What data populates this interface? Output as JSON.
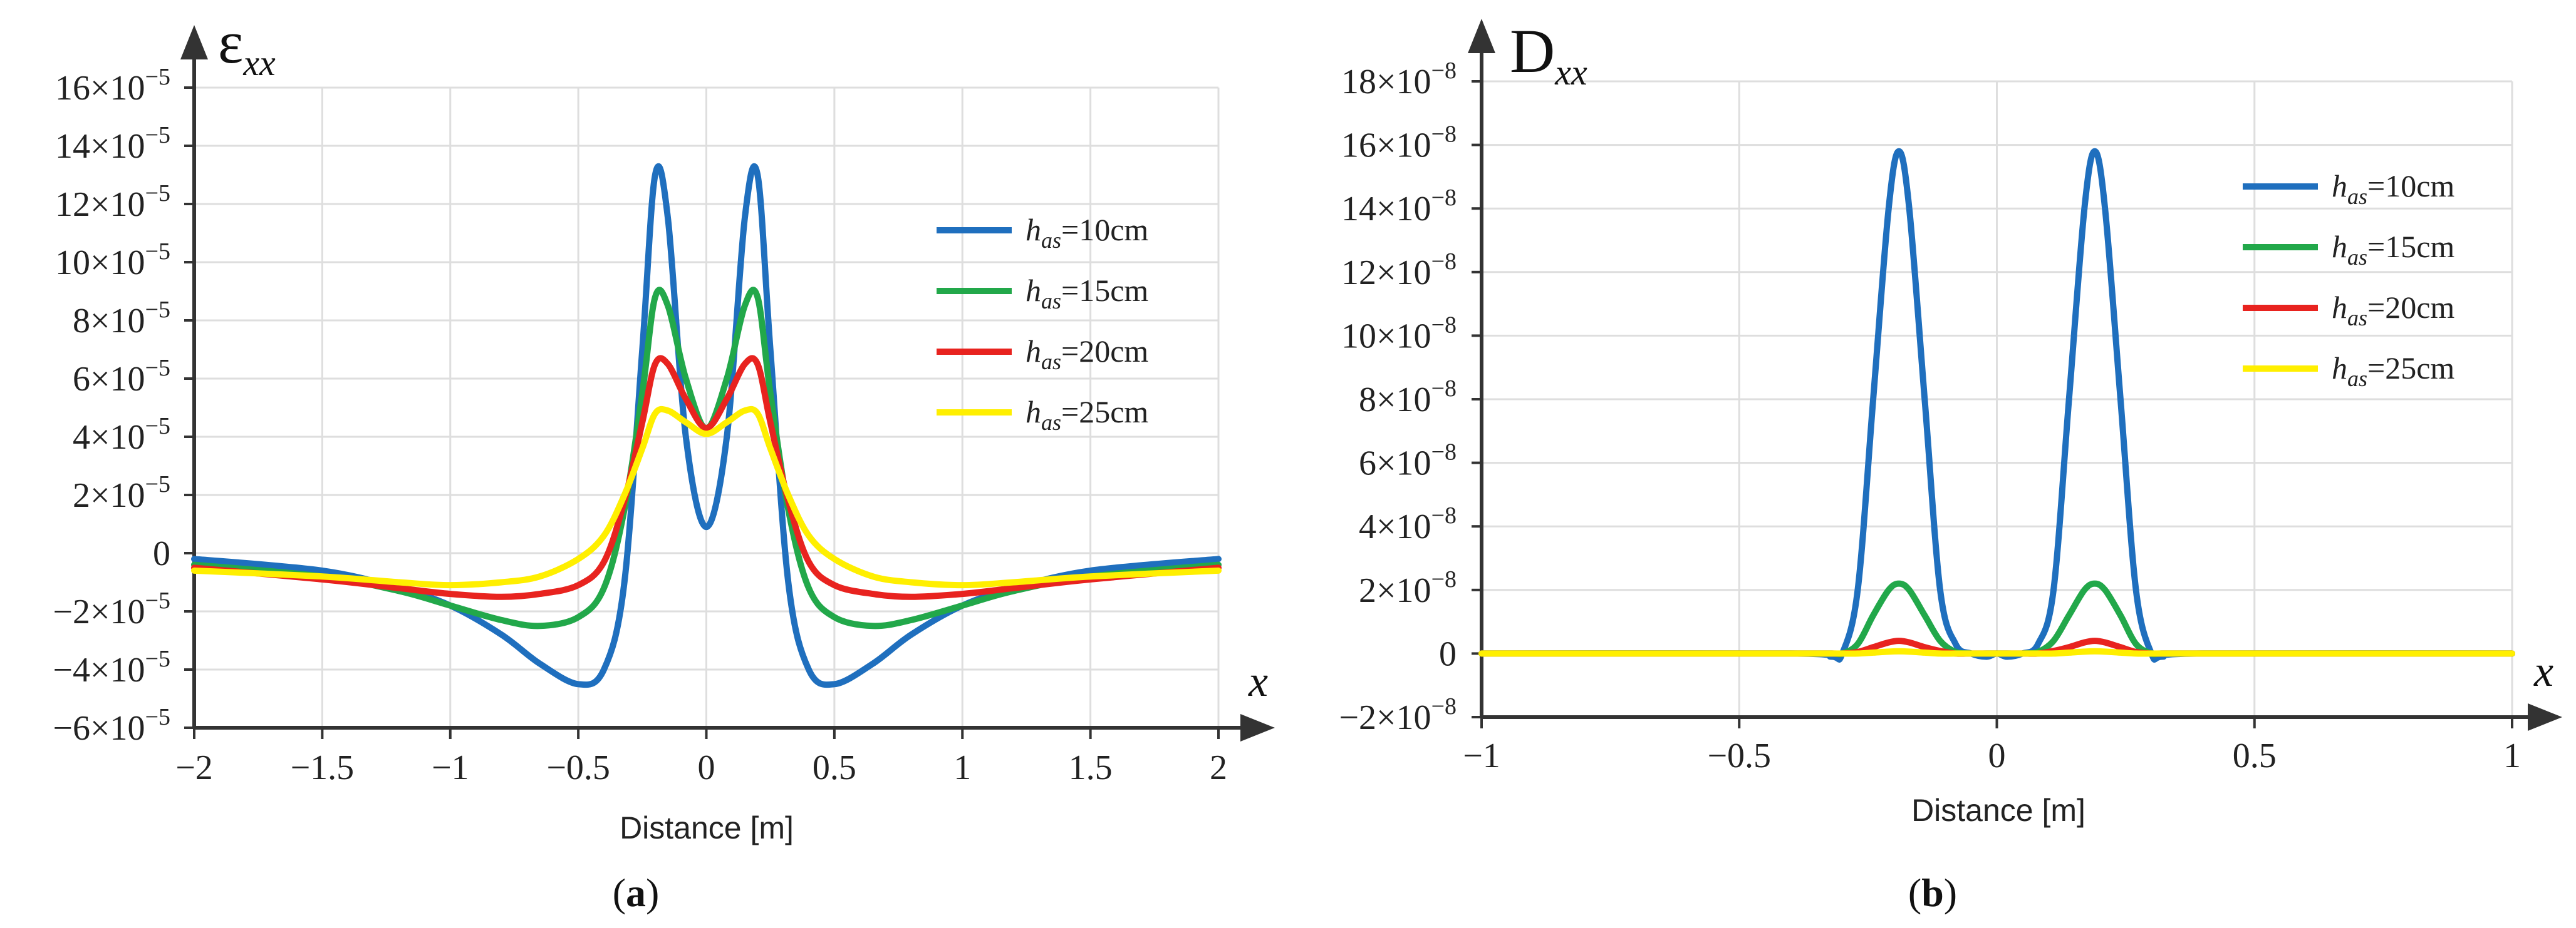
{
  "chart_data": [
    {
      "id": "a",
      "type": "line",
      "caption_letter": "a",
      "ylabel_symbol": "ε",
      "ylabel_sub": "xx",
      "x_axis_symbol": "x",
      "xlabel": "Distance [m]",
      "xlim": [
        -2,
        2
      ],
      "ylim": [
        -6e-05,
        0.00016
      ],
      "grid": true,
      "legend_position": "center-right",
      "x_ticks": [
        {
          "value": -2,
          "label": "−2"
        },
        {
          "value": -1.5,
          "label": "−1.5"
        },
        {
          "value": -1,
          "label": "−1"
        },
        {
          "value": -0.5,
          "label": "−0.5"
        },
        {
          "value": 0,
          "label": "0"
        },
        {
          "value": 0.5,
          "label": "0.5"
        },
        {
          "value": 1,
          "label": "1"
        },
        {
          "value": 1.5,
          "label": "1.5"
        },
        {
          "value": 2,
          "label": "2"
        }
      ],
      "y_ticks": [
        {
          "value": -6e-05,
          "mant": "−6",
          "base": "×10",
          "exp": "−5"
        },
        {
          "value": -4e-05,
          "mant": "−4",
          "base": "×10",
          "exp": "−5"
        },
        {
          "value": -2e-05,
          "mant": "−2",
          "base": "×10",
          "exp": "−5"
        },
        {
          "value": 0,
          "mant": "0",
          "base": "",
          "exp": ""
        },
        {
          "value": 2e-05,
          "mant": "2",
          "base": "×10",
          "exp": "−5"
        },
        {
          "value": 4e-05,
          "mant": "4",
          "base": "×10",
          "exp": "−5"
        },
        {
          "value": 6e-05,
          "mant": "6",
          "base": "×10",
          "exp": "−5"
        },
        {
          "value": 8e-05,
          "mant": "8",
          "base": "×10",
          "exp": "−5"
        },
        {
          "value": 0.0001,
          "mant": "10",
          "base": "×10",
          "exp": "−5"
        },
        {
          "value": 0.00012,
          "mant": "12",
          "base": "×10",
          "exp": "−5"
        },
        {
          "value": 0.00014,
          "mant": "14",
          "base": "×10",
          "exp": "−5"
        },
        {
          "value": 0.00016,
          "mant": "16",
          "base": "×10",
          "exp": "−5"
        }
      ],
      "x": [
        -2.0,
        -1.5,
        -1.2,
        -1.0,
        -0.8,
        -0.65,
        -0.5,
        -0.4,
        -0.32,
        -0.25,
        -0.2,
        -0.15,
        -0.08,
        0.0,
        0.08,
        0.15,
        0.2,
        0.25,
        0.32,
        0.4,
        0.5,
        0.65,
        0.8,
        1.0,
        1.2,
        1.5,
        2.0
      ],
      "series": [
        {
          "name_main": "h",
          "name_sub": "as",
          "name_rest": "=10cm",
          "color": "#1f6fbe",
          "values": [
            -2e-06,
            -6e-06,
            -1.2e-05,
            -1.8e-05,
            -2.8e-05,
            -3.8e-05,
            -4.5e-05,
            -4e-05,
            -1e-05,
            7e-05,
            0.00013,
            0.000115,
            4e-05,
            9e-06,
            4e-05,
            0.000115,
            0.00013,
            7e-05,
            -1e-05,
            -4e-05,
            -4.5e-05,
            -3.8e-05,
            -2.8e-05,
            -1.8e-05,
            -1.2e-05,
            -6e-06,
            -2e-06
          ]
        },
        {
          "name_main": "h",
          "name_sub": "as",
          "name_rest": "=15cm",
          "color": "#22a84a",
          "values": [
            -4e-06,
            -8e-06,
            -1.3e-05,
            -1.8e-05,
            -2.3e-05,
            -2.5e-05,
            -2.2e-05,
            -1.2e-05,
            1.5e-05,
            5.5e-05,
            8.8e-05,
            8.5e-05,
            6e-05,
            4.3e-05,
            6e-05,
            8.5e-05,
            8.8e-05,
            5.5e-05,
            1.5e-05,
            -1.2e-05,
            -2.2e-05,
            -2.5e-05,
            -2.3e-05,
            -1.8e-05,
            -1.3e-05,
            -8e-06,
            -4e-06
          ]
        },
        {
          "name_main": "h",
          "name_sub": "as",
          "name_rest": "=20cm",
          "color": "#e8231f",
          "values": [
            -5e-06,
            -9e-06,
            -1.2e-05,
            -1.4e-05,
            -1.5e-05,
            -1.4e-05,
            -1.1e-05,
            -3e-06,
            1.8e-05,
            4.5e-05,
            6.5e-05,
            6.5e-05,
            5.3e-05,
            4.3e-05,
            5.3e-05,
            6.5e-05,
            6.5e-05,
            4.5e-05,
            1.8e-05,
            -3e-06,
            -1.1e-05,
            -1.4e-05,
            -1.5e-05,
            -1.4e-05,
            -1.2e-05,
            -9e-06,
            -5e-06
          ]
        },
        {
          "name_main": "h",
          "name_sub": "as",
          "name_rest": "=25cm",
          "color": "#ffef00",
          "values": [
            -6e-06,
            -8e-06,
            -1e-05,
            -1.1e-05,
            -1e-05,
            -8e-06,
            -2e-06,
            6e-06,
            2e-05,
            3.6e-05,
            4.8e-05,
            4.9e-05,
            4.5e-05,
            4.1e-05,
            4.5e-05,
            4.9e-05,
            4.8e-05,
            3.6e-05,
            2e-05,
            6e-06,
            -2e-06,
            -8e-06,
            -1e-05,
            -1.1e-05,
            -1e-05,
            -8e-06,
            -6e-06
          ]
        }
      ]
    },
    {
      "id": "b",
      "type": "line",
      "caption_letter": "b",
      "ylabel_symbol": "D",
      "ylabel_sub": "xx",
      "x_axis_symbol": "x",
      "xlabel": "Distance [m]",
      "xlim": [
        -1,
        1
      ],
      "ylim": [
        -2e-08,
        1.8e-07
      ],
      "grid": true,
      "legend_position": "top-right",
      "x_ticks": [
        {
          "value": -1,
          "label": "−1"
        },
        {
          "value": -0.5,
          "label": "−0.5"
        },
        {
          "value": 0,
          "label": "0"
        },
        {
          "value": 0.5,
          "label": "0.5"
        },
        {
          "value": 1,
          "label": "1"
        }
      ],
      "y_ticks": [
        {
          "value": -2e-08,
          "mant": "−2",
          "base": "×10",
          "exp": "−8"
        },
        {
          "value": 0,
          "mant": "0",
          "base": "",
          "exp": ""
        },
        {
          "value": 2e-08,
          "mant": "2",
          "base": "×10",
          "exp": "−8"
        },
        {
          "value": 4e-08,
          "mant": "4",
          "base": "×10",
          "exp": "−8"
        },
        {
          "value": 6e-08,
          "mant": "6",
          "base": "×10",
          "exp": "−8"
        },
        {
          "value": 8e-08,
          "mant": "8",
          "base": "×10",
          "exp": "−8"
        },
        {
          "value": 1e-07,
          "mant": "10",
          "base": "×10",
          "exp": "−8"
        },
        {
          "value": 1.2e-07,
          "mant": "12",
          "base": "×10",
          "exp": "−8"
        },
        {
          "value": 1.4e-07,
          "mant": "14",
          "base": "×10",
          "exp": "−8"
        },
        {
          "value": 1.6e-07,
          "mant": "16",
          "base": "×10",
          "exp": "−8"
        },
        {
          "value": 1.8e-07,
          "mant": "18",
          "base": "×10",
          "exp": "−8"
        }
      ],
      "x": [
        -1.0,
        -0.4,
        -0.32,
        -0.3,
        -0.27,
        -0.24,
        -0.21,
        -0.19,
        -0.17,
        -0.14,
        -0.11,
        -0.08,
        -0.05,
        -0.02,
        0.0,
        0.02,
        0.05,
        0.08,
        0.11,
        0.14,
        0.17,
        0.19,
        0.21,
        0.24,
        0.27,
        0.3,
        0.32,
        0.4,
        1.0
      ],
      "series": [
        {
          "name_main": "h",
          "name_sub": "as",
          "name_rest": "=10cm",
          "color": "#1f6fbe",
          "values": [
            0,
            0,
            -1e-09,
            0,
            2e-08,
            8e-08,
            1.4e-07,
            1.58e-07,
            1.4e-07,
            8e-08,
            2e-08,
            3e-09,
            0,
            -1e-09,
            0,
            -1e-09,
            0,
            3e-09,
            2e-08,
            8e-08,
            1.4e-07,
            1.58e-07,
            1.4e-07,
            8e-08,
            2e-08,
            0,
            -1e-09,
            0,
            0
          ]
        },
        {
          "name_main": "h",
          "name_sub": "as",
          "name_rest": "=15cm",
          "color": "#22a84a",
          "values": [
            0,
            0,
            0,
            0,
            3e-09,
            1.2e-08,
            2e-08,
            2.2e-08,
            2e-08,
            1.2e-08,
            4e-09,
            5e-10,
            0,
            0,
            0,
            0,
            0,
            5e-10,
            4e-09,
            1.2e-08,
            2e-08,
            2.2e-08,
            2e-08,
            1.2e-08,
            3e-09,
            0,
            0,
            0,
            0
          ]
        },
        {
          "name_main": "h",
          "name_sub": "as",
          "name_rest": "=20cm",
          "color": "#e8231f",
          "values": [
            0,
            0,
            0,
            0,
            5e-10,
            2e-09,
            3.5e-09,
            4e-09,
            3.5e-09,
            2e-09,
            8e-10,
            0,
            0,
            0,
            0,
            0,
            0,
            0,
            8e-10,
            2e-09,
            3.5e-09,
            4e-09,
            3.5e-09,
            2e-09,
            5e-10,
            0,
            0,
            0,
            0
          ]
        },
        {
          "name_main": "h",
          "name_sub": "as",
          "name_rest": "=25cm",
          "color": "#ffef00",
          "values": [
            0,
            0,
            0,
            0,
            0,
            3e-10,
            6e-10,
            7e-10,
            6e-10,
            3e-10,
            0,
            0,
            0,
            0,
            0,
            0,
            0,
            0,
            0,
            3e-10,
            6e-10,
            7e-10,
            6e-10,
            3e-10,
            0,
            0,
            0,
            0,
            0
          ]
        }
      ]
    }
  ]
}
